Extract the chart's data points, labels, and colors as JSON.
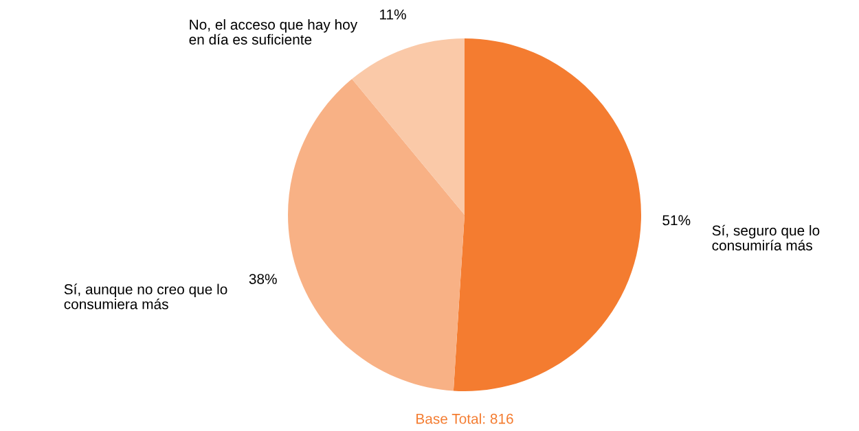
{
  "chart_data": {
    "type": "pie",
    "categories": [
      "Sí, seguro que lo\nconsumiría más",
      "Sí, aunque no creo que lo\nconsumiera más",
      "No, el acceso que hay hoy\nen día es suficiente"
    ],
    "values": [
      51,
      38,
      11
    ],
    "colors": [
      "#f47c30",
      "#f8b185",
      "#fac9a8"
    ],
    "annotations": [
      "Base Total: 816"
    ],
    "value_labels": [
      "51%",
      "38%",
      "11%"
    ],
    "legend": false
  }
}
